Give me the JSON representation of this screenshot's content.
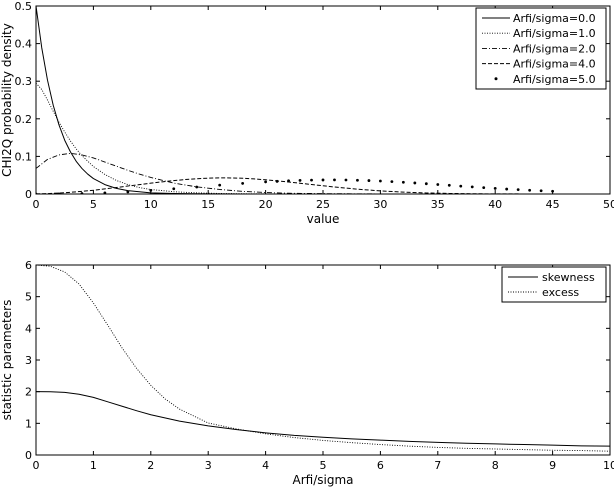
{
  "chart_data": [
    {
      "type": "line",
      "xlabel": "value",
      "ylabel": "CHI2Q probability density",
      "xlim": [
        0,
        50
      ],
      "ylim": [
        0,
        0.5
      ],
      "xticks": [
        "0",
        "5",
        "10",
        "15",
        "20",
        "25",
        "30",
        "35",
        "40",
        "45",
        "50"
      ],
      "yticks": [
        "0",
        "0.1",
        "0.2",
        "0.3",
        "0.4",
        "0.5"
      ],
      "grid": false,
      "legend_position": "top-right",
      "series": [
        {
          "name": "Arfi/sigma=0.0",
          "style": "solid",
          "x": [
            0,
            0.5,
            1,
            1.5,
            2,
            2.5,
            3,
            3.5,
            4,
            4.5,
            5,
            6,
            7,
            8,
            9,
            10,
            12,
            14,
            16,
            18,
            20,
            25,
            30,
            35,
            40,
            45,
            50
          ],
          "y": [
            0.5,
            0.389,
            0.303,
            0.236,
            0.184,
            0.143,
            0.112,
            0.087,
            0.068,
            0.053,
            0.041,
            0.025,
            0.015,
            0.009,
            0.006,
            0.003,
            0.0012,
            0.0005,
            0.0002,
            0.0001,
            0,
            0,
            0,
            0,
            0,
            0,
            0
          ]
        },
        {
          "name": "Arfi/sigma=1.0",
          "style": "dotted",
          "x": [
            0,
            0.5,
            1,
            1.5,
            2,
            2.5,
            3,
            3.5,
            4,
            5,
            6,
            7,
            8,
            9,
            10,
            12,
            14,
            16,
            18,
            20,
            25,
            30,
            35,
            40,
            45,
            50
          ],
          "y": [
            0.295,
            0.278,
            0.25,
            0.22,
            0.191,
            0.165,
            0.141,
            0.12,
            0.102,
            0.073,
            0.052,
            0.036,
            0.025,
            0.017,
            0.012,
            0.006,
            0.003,
            0.0014,
            0.0007,
            0.0003,
            0,
            0,
            0,
            0,
            0,
            0
          ]
        },
        {
          "name": "Arfi/sigma=2.0",
          "style": "dashdot",
          "x": [
            0,
            1,
            2,
            3,
            4,
            5,
            6,
            7,
            8,
            9,
            10,
            12,
            14,
            16,
            18,
            20,
            22,
            25,
            30,
            35,
            40,
            45,
            50
          ],
          "y": [
            0.068,
            0.092,
            0.104,
            0.108,
            0.104,
            0.096,
            0.085,
            0.074,
            0.063,
            0.053,
            0.044,
            0.029,
            0.019,
            0.012,
            0.007,
            0.004,
            0.002,
            0.001,
            0.0002,
            0,
            0,
            0,
            0
          ]
        },
        {
          "name": "Arfi/sigma=4.0",
          "style": "dashed",
          "x": [
            0,
            1,
            2,
            3,
            4,
            5,
            6,
            7,
            8,
            9,
            10,
            11,
            12,
            13,
            14,
            15,
            16,
            17,
            18,
            19,
            20,
            22,
            24,
            26,
            28,
            30,
            32,
            34,
            36,
            38,
            40,
            45,
            50
          ],
          "y": [
            0.0003,
            0.0011,
            0.0025,
            0.0045,
            0.0071,
            0.01,
            0.0136,
            0.0173,
            0.0212,
            0.025,
            0.0288,
            0.0324,
            0.0357,
            0.0384,
            0.0406,
            0.0421,
            0.0428,
            0.0427,
            0.0418,
            0.0401,
            0.0378,
            0.0319,
            0.0252,
            0.0186,
            0.0128,
            0.0083,
            0.005,
            0.0028,
            0.0015,
            0.0007,
            0.0003,
            0,
            0
          ]
        },
        {
          "name": "Arfi/sigma=5.0",
          "style": "dots",
          "x": [
            0,
            2,
            4,
            6,
            8,
            10,
            12,
            14,
            16,
            18,
            20,
            21,
            22,
            23,
            24,
            25,
            26,
            27,
            28,
            29,
            30,
            31,
            32,
            33,
            34,
            35,
            36,
            37,
            38,
            39,
            40,
            41,
            42,
            43,
            44,
            45
          ],
          "y": [
            0,
            0.0002,
            0.0012,
            0.003,
            0.0058,
            0.0095,
            0.0139,
            0.0187,
            0.0235,
            0.0281,
            0.0321,
            0.0337,
            0.0351,
            0.0362,
            0.037,
            0.0374,
            0.0375,
            0.0372,
            0.0366,
            0.0357,
            0.0345,
            0.033,
            0.0313,
            0.0294,
            0.0274,
            0.0253,
            0.0231,
            0.021,
            0.0189,
            0.0169,
            0.0149,
            0.0131,
            0.0115,
            0.0099,
            0.0086,
            0.0073
          ]
        }
      ]
    },
    {
      "type": "line",
      "xlabel": "Arfi/sigma",
      "ylabel": "statistic parameters",
      "xlim": [
        0,
        10
      ],
      "ylim": [
        0,
        6
      ],
      "xticks": [
        "0",
        "1",
        "2",
        "3",
        "4",
        "5",
        "6",
        "7",
        "8",
        "9",
        "10"
      ],
      "yticks": [
        "0",
        "1",
        "2",
        "3",
        "4",
        "5",
        "6"
      ],
      "grid": false,
      "legend_position": "top-right",
      "series": [
        {
          "name": "skewness",
          "style": "solid",
          "x": [
            0,
            0.25,
            0.5,
            0.75,
            1,
            1.25,
            1.5,
            1.75,
            2,
            2.5,
            3,
            3.5,
            4,
            4.5,
            5,
            5.5,
            6,
            6.5,
            7,
            7.5,
            8,
            8.5,
            9,
            9.5,
            10
          ],
          "y": [
            2,
            1.996,
            1.976,
            1.92,
            1.82,
            1.68,
            1.54,
            1.4,
            1.27,
            1.07,
            0.92,
            0.8,
            0.7,
            0.62,
            0.56,
            0.51,
            0.47,
            0.43,
            0.4,
            0.37,
            0.35,
            0.33,
            0.31,
            0.29,
            0.28
          ]
        },
        {
          "name": "excess",
          "style": "dotted",
          "x": [
            0,
            0.25,
            0.5,
            0.75,
            1,
            1.25,
            1.5,
            1.75,
            2,
            2.25,
            2.5,
            3,
            3.5,
            4,
            4.5,
            5,
            5.5,
            6,
            6.5,
            7,
            7.5,
            8,
            8.5,
            9,
            9.5,
            10
          ],
          "y": [
            6,
            5.96,
            5.78,
            5.4,
            4.8,
            4.1,
            3.38,
            2.74,
            2.2,
            1.77,
            1.45,
            1.01,
            0.82,
            0.67,
            0.55,
            0.46,
            0.39,
            0.33,
            0.28,
            0.24,
            0.21,
            0.19,
            0.17,
            0.15,
            0.14,
            0.12
          ]
        }
      ]
    }
  ]
}
